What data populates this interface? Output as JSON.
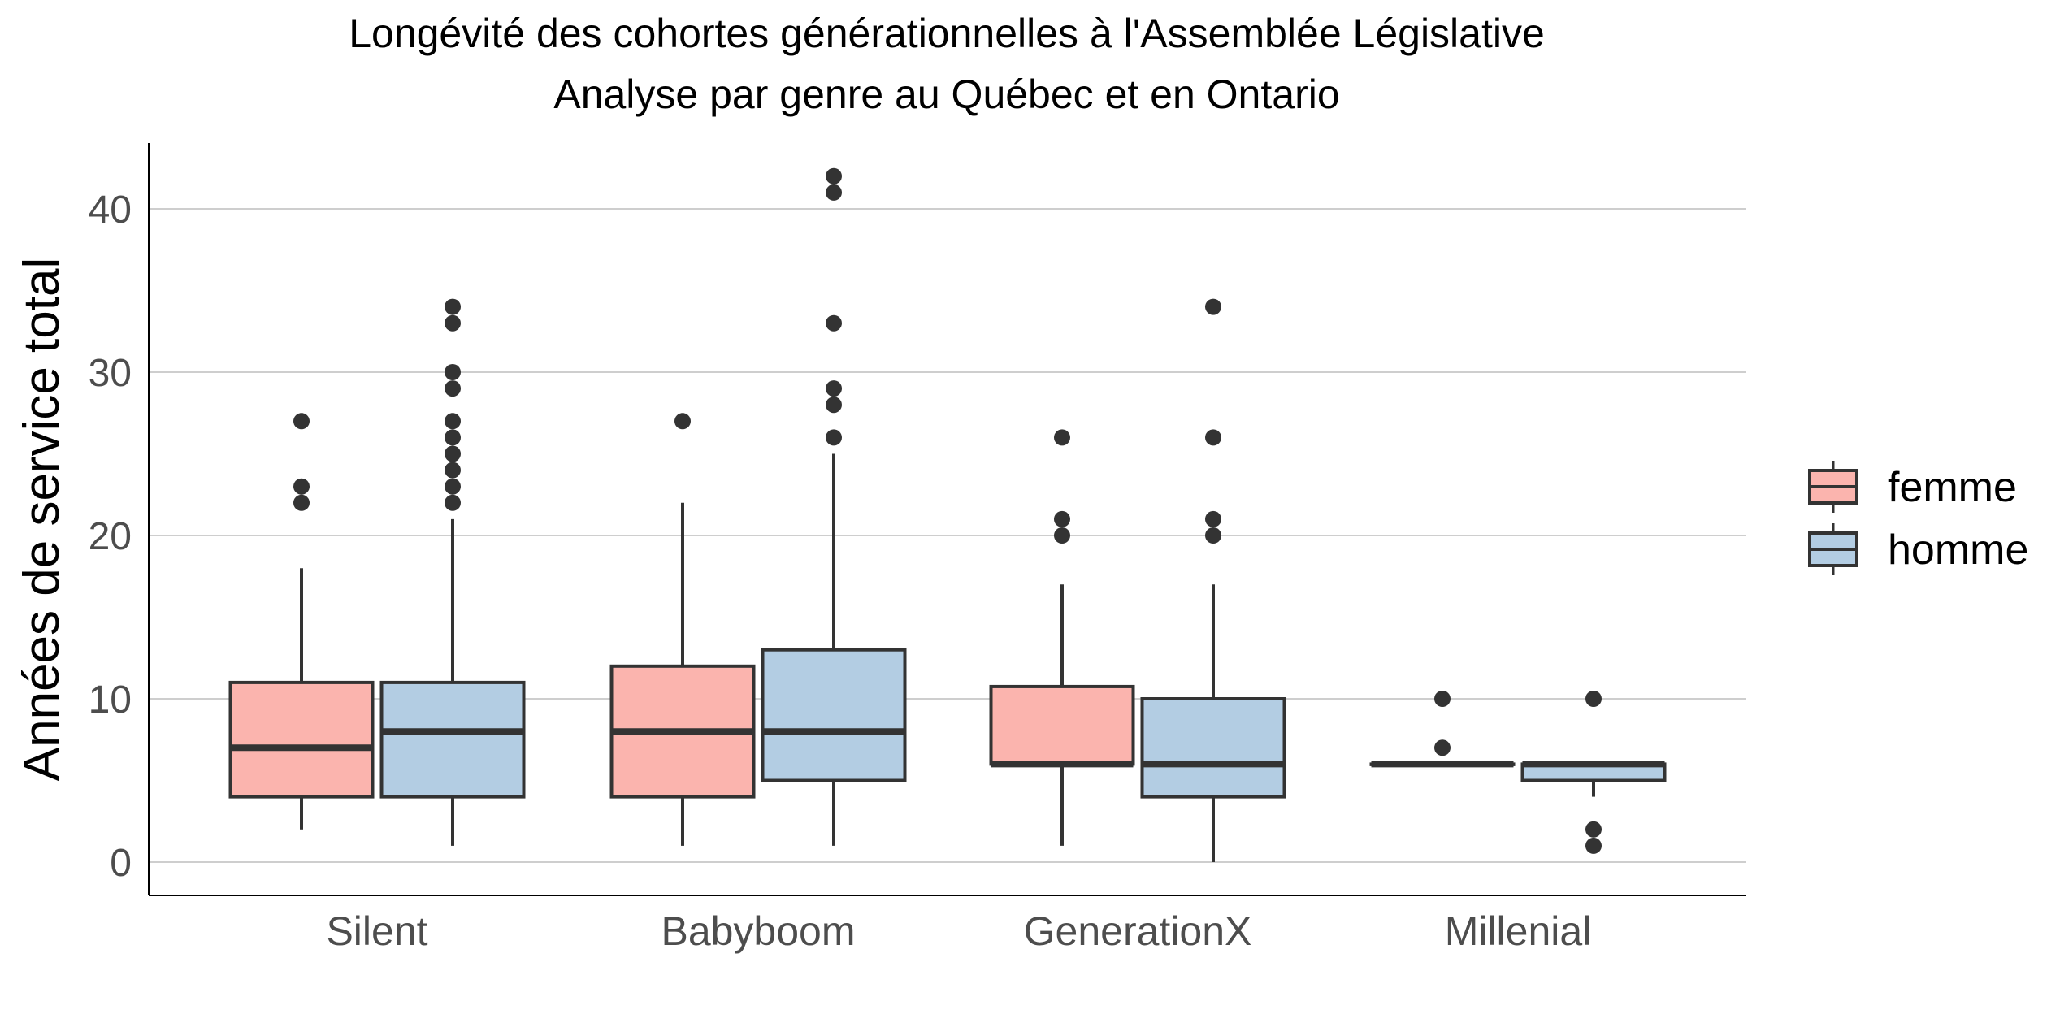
{
  "chart_data": {
    "type": "boxplot",
    "title": "Longévité des cohortes générationnelles à l'Assemblée Législative",
    "subtitle": "Analyse par genre au Québec et en Ontario",
    "xlabel": "",
    "ylabel": "Années de service total",
    "ylim": [
      -2,
      44
    ],
    "yticks": [
      0,
      10,
      20,
      30,
      40
    ],
    "grid": "horizontal",
    "legend_position": "right",
    "categories": [
      "Silent",
      "Babyboom",
      "GenerationX",
      "Millenial"
    ],
    "series": [
      {
        "name": "femme",
        "color": "#fbb4ae",
        "boxes": [
          {
            "category": "Silent",
            "min": 2,
            "q1": 4,
            "median": 7,
            "q3": 11,
            "max": 18,
            "outliers": [
              22,
              23,
              27
            ]
          },
          {
            "category": "Babyboom",
            "min": 1,
            "q1": 4,
            "median": 8,
            "q3": 12,
            "max": 22,
            "outliers": [
              27
            ]
          },
          {
            "category": "GenerationX",
            "min": 1,
            "q1": 6,
            "median": 6,
            "q3": 10.75,
            "max": 17,
            "outliers": [
              20,
              21,
              26
            ]
          },
          {
            "category": "Millenial",
            "min": 6,
            "q1": 6,
            "median": 6,
            "q3": 6,
            "max": 6,
            "outliers": [
              7,
              10
            ]
          }
        ]
      },
      {
        "name": "homme",
        "color": "#b3cde3",
        "boxes": [
          {
            "category": "Silent",
            "min": 1,
            "q1": 4,
            "median": 8,
            "q3": 11,
            "max": 21,
            "outliers": [
              22,
              23,
              24,
              25,
              26,
              27,
              29,
              30,
              33,
              34
            ]
          },
          {
            "category": "Babyboom",
            "min": 1,
            "q1": 5,
            "median": 8,
            "q3": 13,
            "max": 25,
            "outliers": [
              26,
              28,
              29,
              33,
              41,
              42
            ]
          },
          {
            "category": "GenerationX",
            "min": 0,
            "q1": 4,
            "median": 6,
            "q3": 10,
            "max": 17,
            "outliers": [
              20,
              21,
              26,
              34
            ]
          },
          {
            "category": "Millenial",
            "min": 4,
            "q1": 5,
            "median": 6,
            "q3": 6,
            "max": 6,
            "outliers": [
              1,
              2,
              10
            ]
          }
        ]
      }
    ]
  }
}
